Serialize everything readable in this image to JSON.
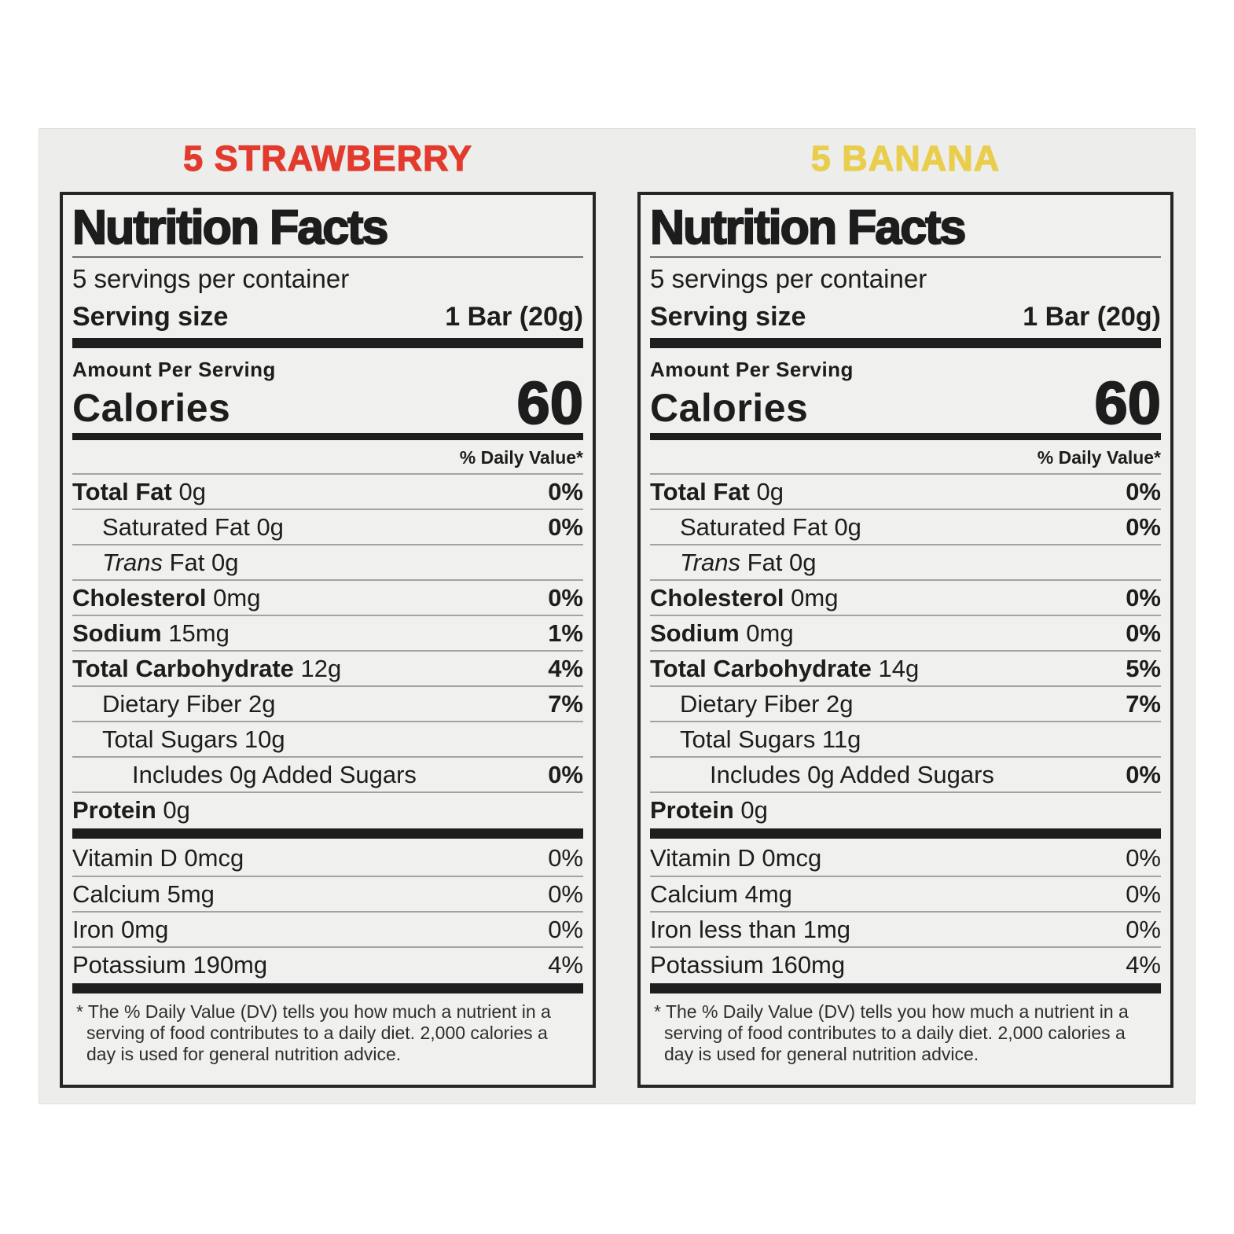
{
  "colors": {
    "strawberry_title": "#e23b2e",
    "banana_title": "#e9ce4e",
    "panel_bg": "#ededeb",
    "label_bg": "#f0f0ee",
    "rule_black": "#1e1e1e"
  },
  "labels": [
    {
      "flavor": "5 STRAWBERRY",
      "title": "Nutrition Facts",
      "servings_per_container": "5 servings per container",
      "serving_size_label": "Serving size",
      "serving_size_value": "1 Bar (20g)",
      "amount_per_serving": "Amount Per Serving",
      "calories_label": "Calories",
      "calories_value": "60",
      "daily_value_header": "% Daily Value*",
      "rows": [
        {
          "b": "Total Fat",
          "t": " 0g",
          "p": "0%"
        },
        {
          "t": "Saturated Fat 0g",
          "p": "0%"
        },
        {
          "i": "Trans",
          "t": " Fat 0g",
          "p": ""
        },
        {
          "b": "Cholesterol",
          "t": " 0mg",
          "p": "0%"
        },
        {
          "b": "Sodium",
          "t": " 15mg",
          "p": "1%"
        },
        {
          "b": "Total Carbohydrate",
          "t": " 12g",
          "p": "4%"
        },
        {
          "t": "Dietary Fiber 2g",
          "p": "7%"
        },
        {
          "t": "Total Sugars 10g",
          "p": ""
        },
        {
          "t": "Includes 0g Added Sugars",
          "p": "0%"
        },
        {
          "b": "Protein",
          "t": " 0g",
          "p": ""
        }
      ],
      "vitamins": [
        {
          "t": "Vitamin D 0mcg",
          "p": "0%"
        },
        {
          "t": "Calcium 5mg",
          "p": "0%"
        },
        {
          "t": "Iron 0mg",
          "p": "0%"
        },
        {
          "t": "Potassium 190mg",
          "p": "4%"
        }
      ],
      "footnote": "* The % Daily Value (DV) tells you how much a nutrient in a serving of food contributes to a daily diet. 2,000 calories a day is used for general nutrition advice."
    },
    {
      "flavor": "5 BANANA",
      "title": "Nutrition Facts",
      "servings_per_container": "5 servings per container",
      "serving_size_label": "Serving size",
      "serving_size_value": "1 Bar (20g)",
      "amount_per_serving": "Amount Per Serving",
      "calories_label": "Calories",
      "calories_value": "60",
      "daily_value_header": "% Daily Value*",
      "rows": [
        {
          "b": "Total Fat",
          "t": " 0g",
          "p": "0%"
        },
        {
          "t": "Saturated Fat 0g",
          "p": "0%"
        },
        {
          "i": "Trans",
          "t": " Fat 0g",
          "p": ""
        },
        {
          "b": "Cholesterol",
          "t": " 0mg",
          "p": "0%"
        },
        {
          "b": "Sodium",
          "t": " 0mg",
          "p": "0%"
        },
        {
          "b": "Total Carbohydrate",
          "t": " 14g",
          "p": "5%"
        },
        {
          "t": "Dietary Fiber 2g",
          "p": "7%"
        },
        {
          "t": "Total Sugars 11g",
          "p": ""
        },
        {
          "t": "Includes 0g Added Sugars",
          "p": "0%"
        },
        {
          "b": "Protein",
          "t": " 0g",
          "p": ""
        }
      ],
      "vitamins": [
        {
          "t": "Vitamin D 0mcg",
          "p": "0%"
        },
        {
          "t": "Calcium 4mg",
          "p": "0%"
        },
        {
          "t": "Iron less than 1mg",
          "p": "0%"
        },
        {
          "t": "Potassium 160mg",
          "p": "4%"
        }
      ],
      "footnote": "* The % Daily Value (DV) tells you how much a nutrient in a serving of food contributes to a daily diet. 2,000 calories a day is used for general nutrition advice."
    }
  ]
}
